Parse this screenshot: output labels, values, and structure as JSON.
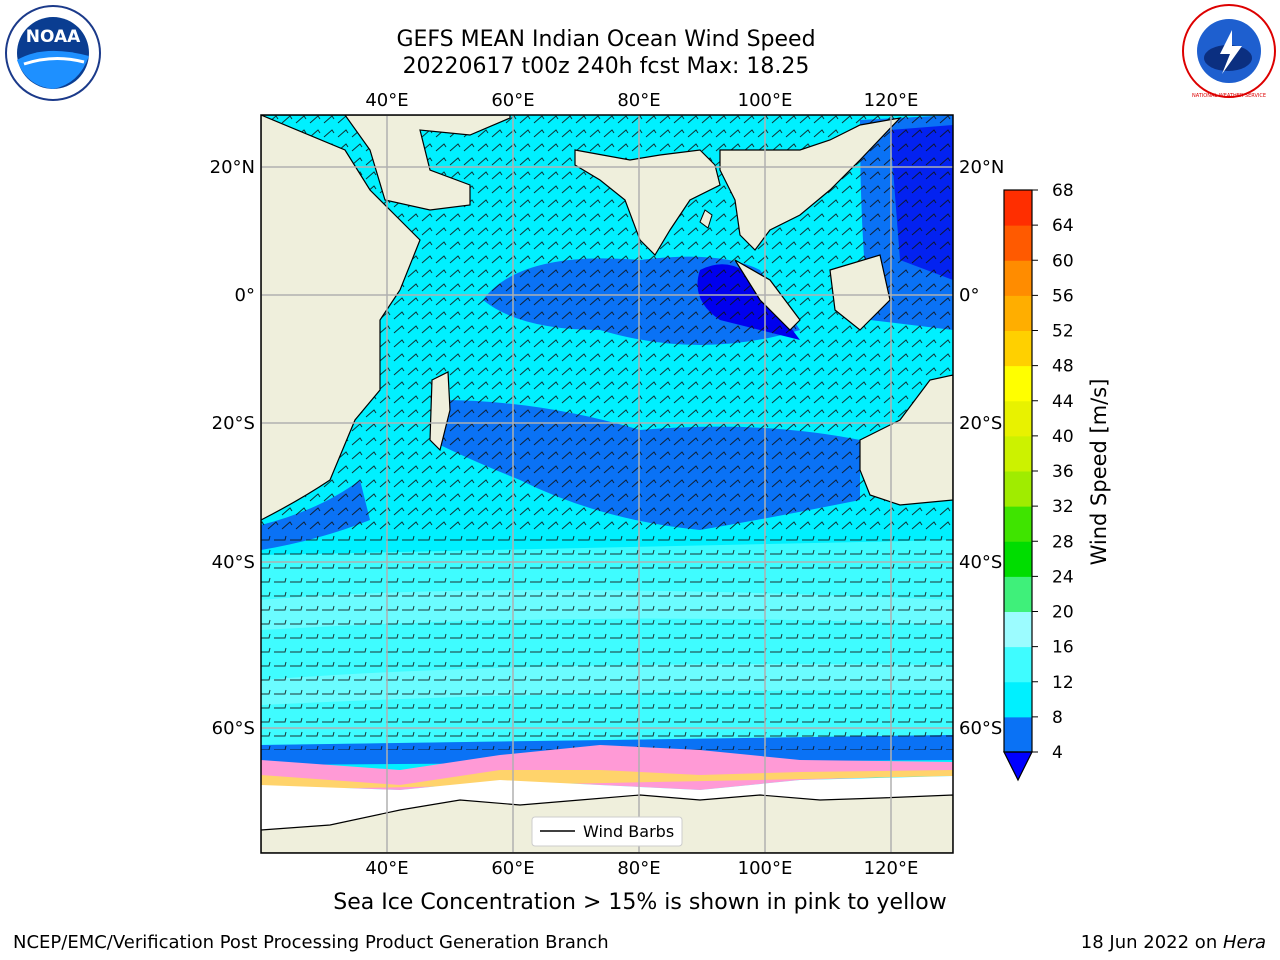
{
  "title_line1": "GEFS MEAN Indian Ocean Wind Speed",
  "title_line2": "20220617 t00z 240h fcst   Max: 18.25",
  "note": "Sea Ice Concentration > 15% is shown in pink to yellow",
  "footer_left": "NCEP/EMC/Verification Post Processing Product Generation Branch",
  "footer_right_prefix": "18 Jun 2022 on ",
  "footer_right_host": "Hera",
  "legend_label": "Wind Barbs",
  "colorbar": {
    "label": "Wind Speed [m/s]",
    "ticks": [
      4,
      8,
      12,
      16,
      20,
      24,
      28,
      32,
      36,
      40,
      44,
      48,
      52,
      56,
      60,
      64,
      68
    ],
    "colors": [
      "#0a72f5",
      "#00f0ff",
      "#3ffcff",
      "#9cfcff",
      "#3ff07a",
      "#00dd00",
      "#3fe400",
      "#a0ec00",
      "#ccf200",
      "#e8f200",
      "#ffff00",
      "#ffd000",
      "#ffae00",
      "#ff8c00",
      "#ff5a00",
      "#ff2e00",
      "#ff0000"
    ],
    "under_color": "#0000ff"
  },
  "map": {
    "lon_ticks": [
      "40°E",
      "60°E",
      "80°E",
      "100°E",
      "120°E"
    ],
    "lat_ticks": [
      "20°N",
      "0°",
      "20°S",
      "40°S",
      "60°S"
    ],
    "land_color": "#efefdc",
    "ice_color": "#ffffff"
  },
  "logos": {
    "noaa_text": "NOAA",
    "nws_text": "NATIONAL WEATHER SERVICE"
  }
}
